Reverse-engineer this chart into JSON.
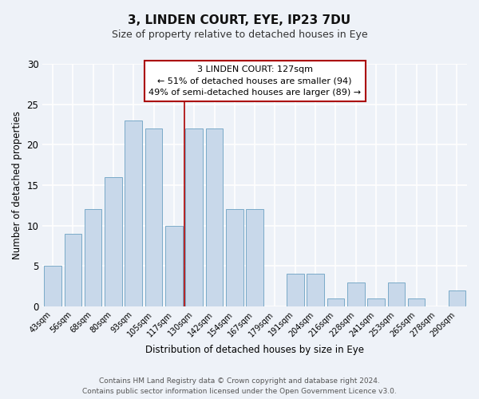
{
  "title": "3, LINDEN COURT, EYE, IP23 7DU",
  "subtitle": "Size of property relative to detached houses in Eye",
  "xlabel": "Distribution of detached houses by size in Eye",
  "ylabel": "Number of detached properties",
  "footer_line1": "Contains HM Land Registry data © Crown copyright and database right 2024.",
  "footer_line2": "Contains public sector information licensed under the Open Government Licence v3.0.",
  "categories": [
    "43sqm",
    "56sqm",
    "68sqm",
    "80sqm",
    "93sqm",
    "105sqm",
    "117sqm",
    "130sqm",
    "142sqm",
    "154sqm",
    "167sqm",
    "179sqm",
    "191sqm",
    "204sqm",
    "216sqm",
    "228sqm",
    "241sqm",
    "253sqm",
    "265sqm",
    "278sqm",
    "290sqm"
  ],
  "values": [
    5,
    9,
    12,
    16,
    23,
    22,
    10,
    22,
    22,
    12,
    12,
    0,
    4,
    4,
    1,
    3,
    1,
    3,
    1,
    0,
    2
  ],
  "bar_color": "#c8d8ea",
  "bar_edge_color": "#7aaac8",
  "marker_index": 7,
  "marker_line_color": "#aa0000",
  "annotation_title": "3 LINDEN COURT: 127sqm",
  "annotation_line1": "← 51% of detached houses are smaller (94)",
  "annotation_line2": "49% of semi-detached houses are larger (89) →",
  "annotation_box_color": "#ffffff",
  "annotation_box_edge_color": "#aa0000",
  "ylim": [
    0,
    30
  ],
  "yticks": [
    0,
    5,
    10,
    15,
    20,
    25,
    30
  ],
  "background_color": "#eef2f8",
  "title_fontsize": 11,
  "subtitle_fontsize": 9,
  "bar_fontsize": 8,
  "annotation_fontsize": 8,
  "footer_fontsize": 6.5
}
